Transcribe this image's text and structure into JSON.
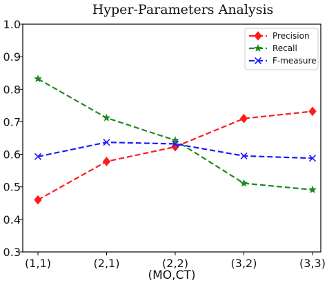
{
  "chart_data": {
    "type": "line",
    "title": "Hyper-Parameters Analysis",
    "xlabel": "(MO,CT)",
    "ylabel": "",
    "categories": [
      "(1,1)",
      "(2,1)",
      "(2,2)",
      "(3,2)",
      "(3,3)"
    ],
    "ylim": [
      0.3,
      1.0
    ],
    "yticks": [
      "0.3",
      "0.4",
      "0.5",
      "0.6",
      "0.7",
      "0.8",
      "0.9",
      "1.0"
    ],
    "yticks_values": [
      0.3,
      0.4,
      0.5,
      0.6,
      0.7,
      0.8,
      0.9,
      1.0
    ],
    "grid": false,
    "legend_position": "top-right",
    "series": [
      {
        "name": "Precision",
        "values": [
          0.46,
          0.578,
          0.623,
          0.71,
          0.732
        ],
        "color": "#ff1a1a",
        "marker": "diamond",
        "linestyle": "dashed"
      },
      {
        "name": "Recall",
        "values": [
          0.832,
          0.712,
          0.643,
          0.511,
          0.491
        ],
        "color": "#1f8a1f",
        "marker": "star",
        "linestyle": "dashed"
      },
      {
        "name": "F-measure",
        "values": [
          0.593,
          0.637,
          0.632,
          0.595,
          0.588
        ],
        "color": "#1a1aff",
        "marker": "x",
        "linestyle": "dashed"
      }
    ]
  }
}
